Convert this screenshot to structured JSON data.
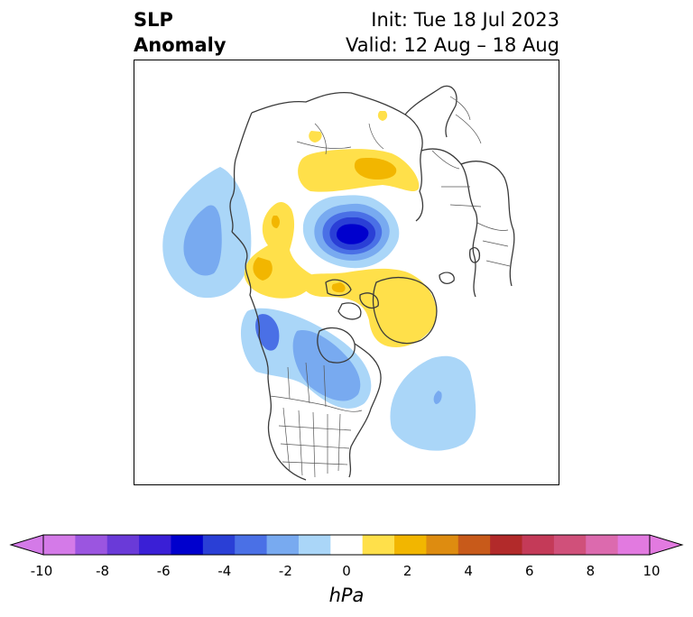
{
  "title": {
    "left_line1": "SLP",
    "left_line2": "Anomaly",
    "init": "Init: Tue 18 Jul 2023",
    "valid": "Valid: 12 Aug – 18 Aug"
  },
  "colorbar": {
    "units": "hPa",
    "ticks": [
      "-10",
      "-8",
      "-6",
      "-4",
      "-2",
      "0",
      "2",
      "4",
      "6",
      "8",
      "10"
    ],
    "colors": [
      "#d47ae8",
      "#9b55e0",
      "#6a3ad8",
      "#3a1fd6",
      "#0000cd",
      "#2a3fd6",
      "#4a70e6",
      "#78aaf0",
      "#aad6f8",
      "#ffffff",
      "#ffe04a",
      "#f2b600",
      "#de8c10",
      "#c85a1a",
      "#b22a2a",
      "#c43a58",
      "#d0507a",
      "#dc6aae",
      "#e27ae0"
    ],
    "extend_low_color": "#d47ae8",
    "extend_high_color": "#e27ae0"
  },
  "map": {
    "projection": "north-polar-stereographic",
    "features": [
      "coastlines",
      "country-borders",
      "state-borders"
    ],
    "anomaly_regions": [
      {
        "name": "arctic-low-center",
        "level": "-6"
      },
      {
        "name": "north-pacific-low",
        "level": "-4"
      },
      {
        "name": "western-canada-low",
        "level": "-4"
      },
      {
        "name": "north-atlantic-low",
        "level": "-2"
      },
      {
        "name": "siberia-high",
        "level": "2"
      },
      {
        "name": "greenland-high",
        "level": "2"
      },
      {
        "name": "alaska-high",
        "level": "2"
      }
    ]
  }
}
